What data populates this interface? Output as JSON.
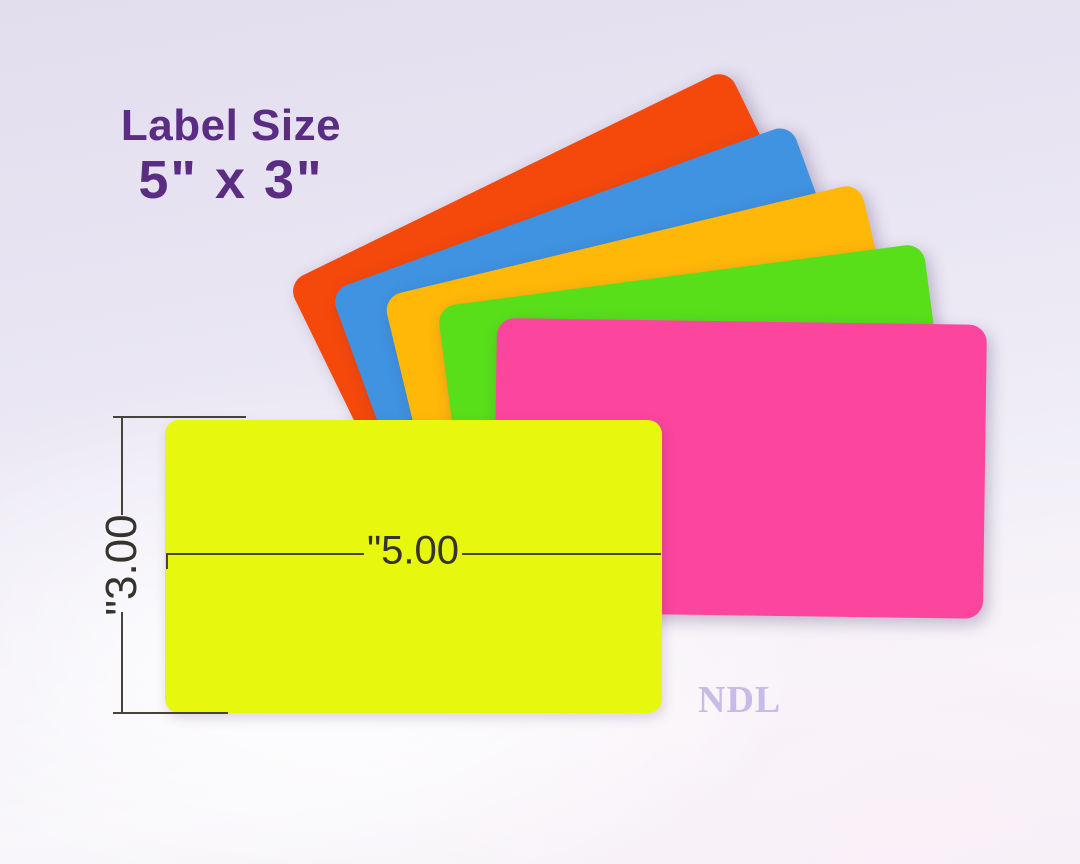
{
  "heading": {
    "title": "Label Size",
    "size": "5\" x 3\"",
    "color": "#5A2D83"
  },
  "sheets": {
    "fan": [
      {
        "name": "orange",
        "color": "#F5490B"
      },
      {
        "name": "blue",
        "color": "#3F93E0"
      },
      {
        "name": "gold",
        "color": "#FFB808"
      },
      {
        "name": "green",
        "color": "#58DF1A"
      },
      {
        "name": "pink",
        "color": "#FC459C"
      }
    ],
    "front": {
      "name": "yellow",
      "color": "#E7F70E"
    }
  },
  "dimensions": {
    "width_text": "\"5.00",
    "height_text": "\"3.00",
    "text_color": "#35332c",
    "line_color": "#45433c"
  },
  "watermark": {
    "text": "NDL",
    "color": "#C8BBE7"
  }
}
